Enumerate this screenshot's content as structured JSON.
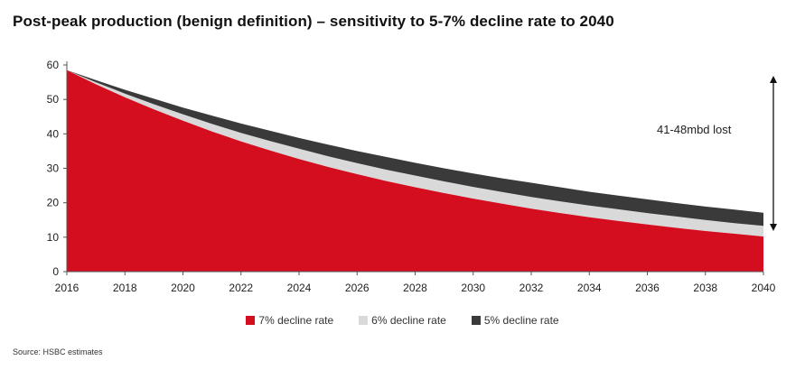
{
  "title": "Post-peak production (benign definition) – sensitivity to 5-7% decline rate to 2040",
  "source": "Source: HSBC estimates",
  "annotation": "41-48mbd lost",
  "colors": {
    "s7": "#d40d1f",
    "s6": "#d9d9d9",
    "s5": "#3a3a3a",
    "axis": "#555555",
    "arrow": "#111111"
  },
  "chart_data": {
    "type": "area",
    "title": "Post-peak production (benign definition) – sensitivity to 5-7% decline rate to 2040",
    "xlabel": "",
    "ylabel": "",
    "x_ticks": [
      "2016",
      "2018",
      "2020",
      "2022",
      "2024",
      "2026",
      "2028",
      "2030",
      "2032",
      "2034",
      "2036",
      "2038",
      "2040"
    ],
    "y_ticks": [
      0,
      10,
      20,
      30,
      40,
      50,
      60
    ],
    "xlim": [
      2016,
      2040
    ],
    "ylim": [
      0,
      60
    ],
    "grid": false,
    "legend_position": "bottom",
    "x": [
      2016,
      2017,
      2018,
      2019,
      2020,
      2021,
      2022,
      2023,
      2024,
      2025,
      2026,
      2027,
      2028,
      2029,
      2030,
      2031,
      2032,
      2033,
      2034,
      2035,
      2036,
      2037,
      2038,
      2039,
      2040
    ],
    "series": [
      {
        "name": "5% decline rate",
        "color": "#3a3a3a",
        "values": [
          58.5,
          55.6,
          52.8,
          50.2,
          47.6,
          45.3,
          43.0,
          40.9,
          38.8,
          36.9,
          35.0,
          33.3,
          31.6,
          30.0,
          28.5,
          27.1,
          25.8,
          24.5,
          23.2,
          22.1,
          21.0,
          19.9,
          18.9,
          18.0,
          17.1
        ]
      },
      {
        "name": "6% decline rate",
        "color": "#d9d9d9",
        "values": [
          58.5,
          55.0,
          51.7,
          48.6,
          45.7,
          42.9,
          40.3,
          37.9,
          35.7,
          33.5,
          31.5,
          29.6,
          27.9,
          26.2,
          24.6,
          23.1,
          21.7,
          20.4,
          19.2,
          18.1,
          17.0,
          16.0,
          15.0,
          14.1,
          13.3
        ]
      },
      {
        "name": "7% decline rate",
        "color": "#d40d1f",
        "values": [
          58.5,
          54.4,
          50.6,
          47.1,
          43.8,
          40.7,
          37.8,
          35.2,
          32.7,
          30.4,
          28.3,
          26.3,
          24.5,
          22.8,
          21.2,
          19.7,
          18.3,
          17.0,
          15.8,
          14.7,
          13.7,
          12.7,
          11.8,
          11.0,
          10.2
        ]
      }
    ]
  }
}
